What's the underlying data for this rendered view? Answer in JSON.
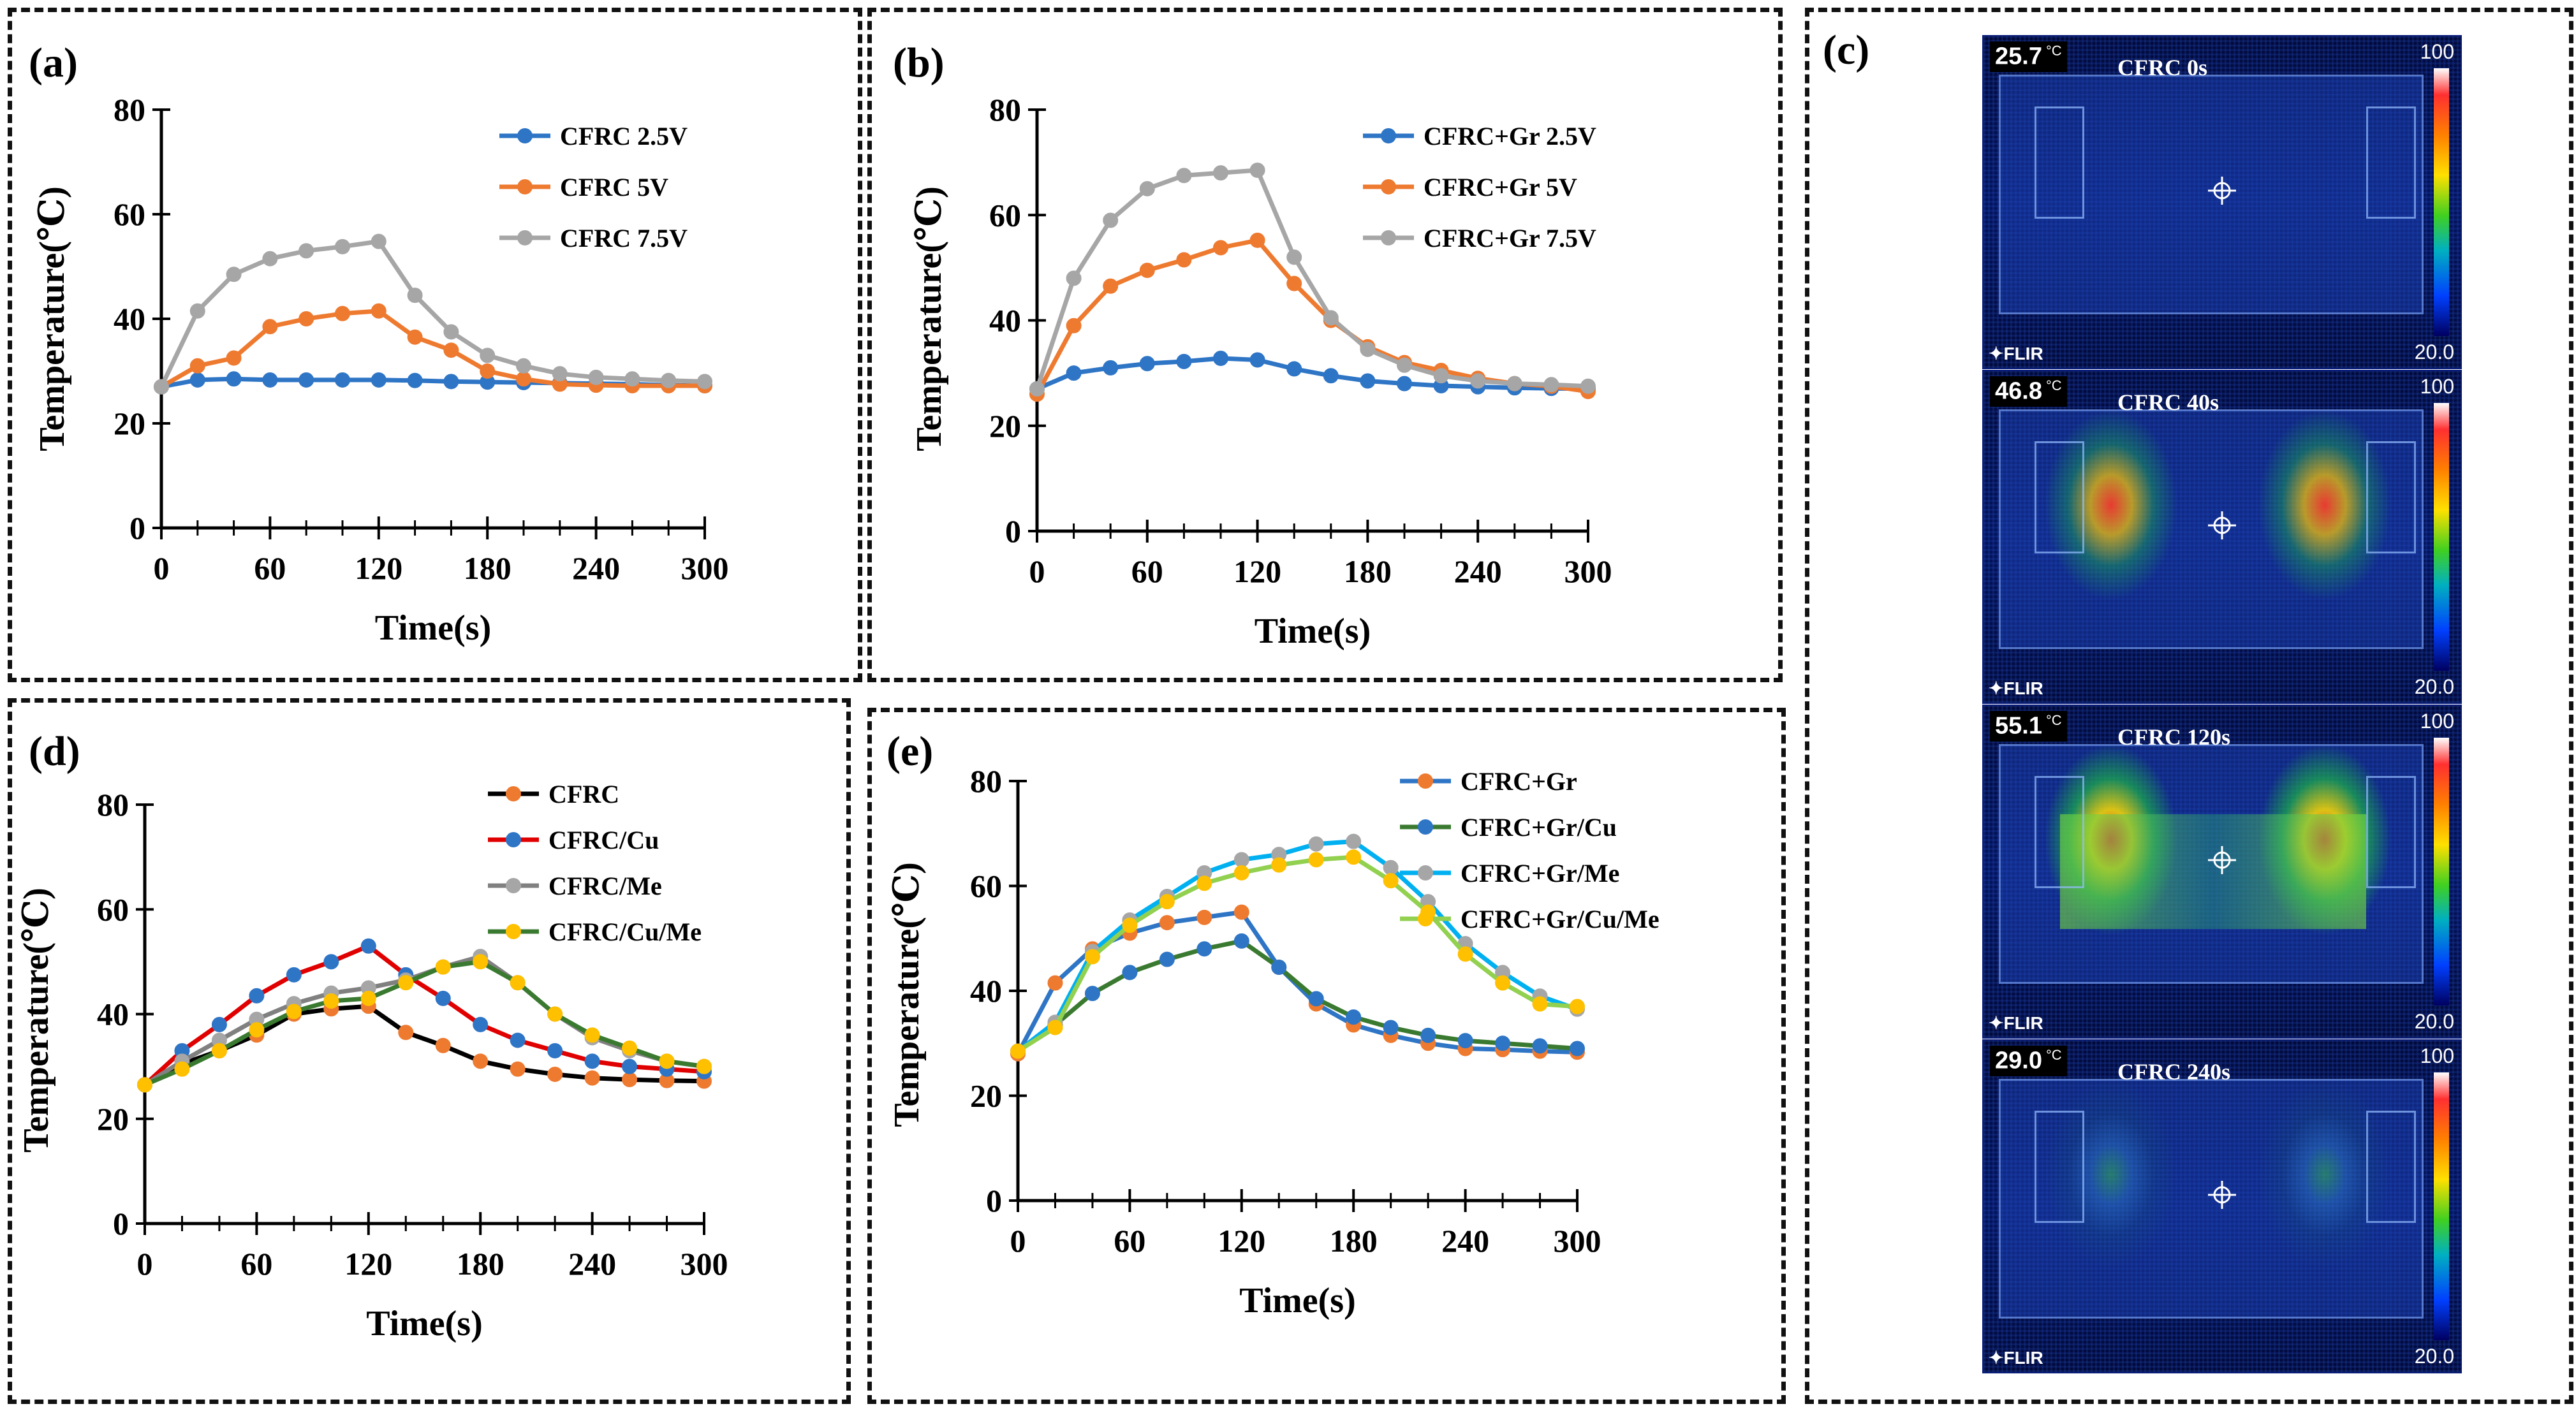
{
  "panels": {
    "a": "(a)",
    "b": "(b)",
    "c": "(c)",
    "d": "(d)",
    "e": "(e)"
  },
  "chart_data": [
    {
      "id": "a",
      "type": "line",
      "title": "",
      "xlabel": "Time(s)",
      "ylabel": "Temperature(℃)",
      "xlim": [
        0,
        300
      ],
      "ylim": [
        0,
        80
      ],
      "xticks": [
        0,
        60,
        120,
        180,
        240,
        300
      ],
      "yticks": [
        0,
        20,
        40,
        60,
        80
      ],
      "x": [
        0,
        20,
        40,
        60,
        80,
        100,
        120,
        140,
        160,
        180,
        200,
        220,
        240,
        260,
        280,
        300
      ],
      "series": [
        {
          "name": "CFRC 2.5V",
          "color": "#2e75c6",
          "values": [
            27.0,
            28.3,
            28.5,
            28.3,
            28.3,
            28.3,
            28.3,
            28.2,
            28.0,
            27.9,
            27.8,
            27.7,
            27.6,
            27.5,
            27.3,
            27.2
          ]
        },
        {
          "name": "CFRC 5V",
          "color": "#ee7a30",
          "values": [
            27.0,
            31.0,
            32.5,
            38.5,
            40.0,
            41.0,
            41.5,
            36.5,
            34.0,
            30.0,
            28.5,
            27.5,
            27.3,
            27.2,
            27.2,
            27.2
          ]
        },
        {
          "name": "CFRC 7.5V",
          "color": "#a6a6a6",
          "values": [
            27.0,
            41.5,
            48.5,
            51.5,
            53.0,
            53.8,
            54.8,
            44.5,
            37.5,
            33.0,
            31.0,
            29.5,
            28.8,
            28.5,
            28.2,
            28.0
          ]
        }
      ]
    },
    {
      "id": "b",
      "type": "line",
      "title": "",
      "xlabel": "Time(s)",
      "ylabel": "Temperature(℃)",
      "xlim": [
        0,
        300
      ],
      "ylim": [
        0,
        80
      ],
      "xticks": [
        0,
        60,
        120,
        180,
        240,
        300
      ],
      "yticks": [
        0,
        20,
        40,
        60,
        80
      ],
      "x": [
        0,
        20,
        40,
        60,
        80,
        100,
        120,
        140,
        160,
        180,
        200,
        220,
        240,
        260,
        280,
        300
      ],
      "series": [
        {
          "name": "CFRC+Gr 2.5V",
          "color": "#2e75c6",
          "values": [
            27.0,
            30.0,
            31.0,
            31.8,
            32.2,
            32.8,
            32.5,
            30.8,
            29.5,
            28.5,
            28.0,
            27.6,
            27.4,
            27.2,
            27.1,
            27.0
          ]
        },
        {
          "name": "CFRC+Gr 5V",
          "color": "#ee7a30",
          "values": [
            26.0,
            39.0,
            46.5,
            49.5,
            51.5,
            53.8,
            55.2,
            47.0,
            40.0,
            35.0,
            32.0,
            30.5,
            29.0,
            28.0,
            27.5,
            26.5
          ]
        },
        {
          "name": "CFRC+Gr 7.5V",
          "color": "#a6a6a6",
          "values": [
            27.0,
            48.0,
            59.0,
            65.0,
            67.5,
            68.0,
            68.5,
            52.0,
            40.5,
            34.5,
            31.5,
            29.5,
            28.5,
            28.0,
            27.8,
            27.5
          ]
        }
      ]
    },
    {
      "id": "d",
      "type": "line",
      "title": "",
      "xlabel": "Time(s)",
      "ylabel": "Temperature(℃)",
      "xlim": [
        0,
        300
      ],
      "ylim": [
        0,
        80
      ],
      "xticks": [
        0,
        60,
        120,
        180,
        240,
        300
      ],
      "yticks": [
        0,
        20,
        40,
        60,
        80
      ],
      "x": [
        0,
        20,
        40,
        60,
        80,
        100,
        120,
        140,
        160,
        180,
        200,
        220,
        240,
        260,
        280,
        300
      ],
      "series": [
        {
          "name": "CFRC",
          "color": "#ee7a30",
          "line": "#000000",
          "values": [
            26.5,
            30.5,
            33.0,
            36.0,
            40.0,
            41.0,
            41.5,
            36.5,
            34.0,
            31.0,
            29.5,
            28.5,
            27.8,
            27.5,
            27.3,
            27.2
          ]
        },
        {
          "name": "CFRC/Cu",
          "color": "#2e75c6",
          "line": "#e00000",
          "values": [
            26.5,
            33.0,
            38.0,
            43.5,
            47.5,
            50.0,
            53.0,
            47.5,
            43.0,
            38.0,
            35.0,
            33.0,
            31.0,
            30.0,
            29.5,
            29.0
          ]
        },
        {
          "name": "CFRC/Me",
          "color": "#a6a6a6",
          "line": "#808080",
          "values": [
            26.5,
            31.0,
            35.0,
            39.0,
            42.0,
            44.0,
            45.0,
            46.5,
            49.0,
            51.0,
            46.0,
            40.0,
            35.5,
            33.0,
            31.0,
            30.0
          ]
        },
        {
          "name": "CFRC/Cu/Me",
          "color": "#ffc000",
          "line": "#3a7a30",
          "values": [
            26.5,
            29.5,
            33.0,
            37.0,
            40.5,
            42.5,
            43.0,
            46.0,
            49.0,
            50.0,
            46.0,
            40.0,
            36.0,
            33.5,
            31.0,
            30.0
          ]
        }
      ]
    },
    {
      "id": "e",
      "type": "line",
      "title": "",
      "xlabel": "Time(s)",
      "ylabel": "Temperature(℃)",
      "xlim": [
        0,
        300
      ],
      "ylim": [
        0,
        80
      ],
      "xticks": [
        0,
        60,
        120,
        180,
        240,
        300
      ],
      "yticks": [
        0,
        20,
        40,
        60,
        80
      ],
      "x": [
        0,
        20,
        40,
        60,
        80,
        100,
        120,
        140,
        160,
        180,
        200,
        220,
        240,
        260,
        280,
        300
      ],
      "series": [
        {
          "name": "CFRC+Gr",
          "color": "#ee7a30",
          "line": "#2e75c6",
          "values": [
            28.0,
            41.5,
            48.0,
            51.0,
            53.0,
            54.0,
            55.0,
            44.5,
            37.5,
            33.5,
            31.5,
            30.0,
            29.0,
            28.8,
            28.5,
            28.3
          ]
        },
        {
          "name": "CFRC+Gr/Cu",
          "color": "#2e75c6",
          "line": "#3a7a30",
          "values": [
            28.5,
            33.5,
            39.5,
            43.5,
            46.0,
            48.0,
            49.5,
            44.5,
            38.5,
            35.0,
            33.0,
            31.5,
            30.5,
            30.0,
            29.5,
            29.0
          ]
        },
        {
          "name": "CFRC+Gr/Me",
          "color": "#a6a6a6",
          "line": "#00b0f0",
          "values": [
            28.5,
            34.0,
            47.5,
            53.5,
            58.0,
            62.5,
            65.0,
            66.0,
            68.0,
            68.5,
            63.5,
            57.0,
            49.0,
            43.5,
            39.0,
            36.5
          ]
        },
        {
          "name": "CFRC+Gr/Cu/Me",
          "color": "#ffc000",
          "line": "#92d050",
          "values": [
            28.5,
            33.0,
            46.5,
            52.5,
            57.0,
            60.5,
            62.5,
            64.0,
            65.0,
            65.5,
            61.0,
            55.0,
            47.0,
            41.5,
            37.5,
            37.0
          ]
        }
      ]
    }
  ],
  "thermal_images": [
    {
      "temp": "25.7",
      "unit": "°C",
      "caption": "CFRC 0s",
      "scale_max": "100",
      "scale_min": "20.0",
      "brand": "FLIR",
      "heat": 0
    },
    {
      "temp": "46.8",
      "unit": "°C",
      "caption": "CFRC 40s",
      "scale_max": "100",
      "scale_min": "20.0",
      "brand": "FLIR",
      "heat": 0.6
    },
    {
      "temp": "55.1",
      "unit": "°C",
      "caption": "CFRC 120s",
      "scale_max": "100",
      "scale_min": "20.0",
      "brand": "FLIR",
      "heat": 1
    },
    {
      "temp": "29.0",
      "unit": "°C",
      "caption": "CFRC 240s",
      "scale_max": "100",
      "scale_min": "20.0",
      "brand": "FLIR",
      "heat": 0.1
    }
  ]
}
